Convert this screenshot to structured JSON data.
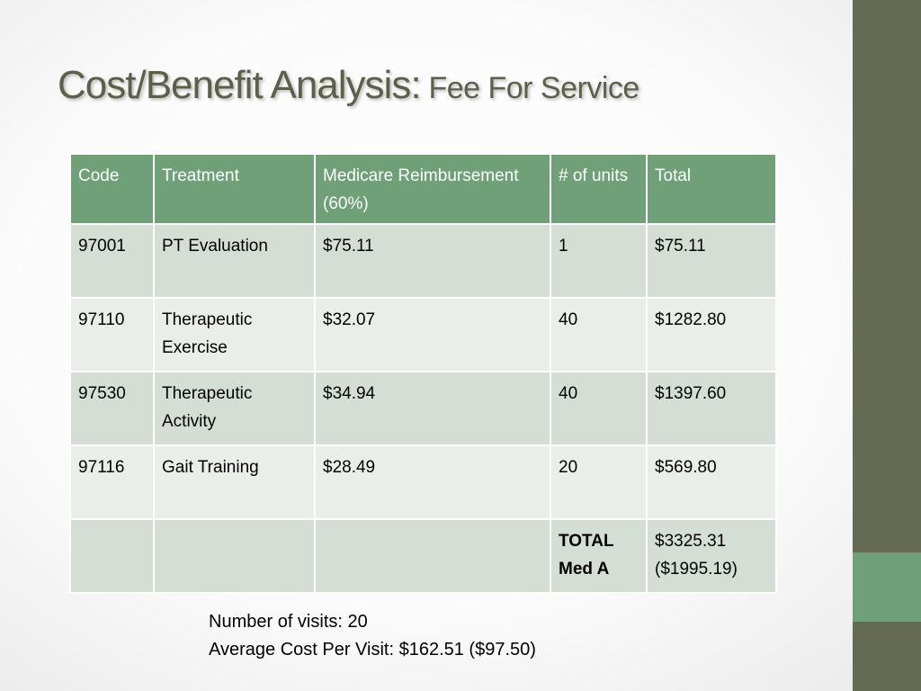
{
  "slide": {
    "title_main": "Cost/Benefit Analysis:",
    "title_sub": "Fee For Service",
    "accent_colors": {
      "sidebar": "#656a53",
      "sidebar_accent": "#6fa077",
      "header_fill": "#6fa077",
      "row_dark": "#d5ded4",
      "row_light": "#eaeee9"
    }
  },
  "table": {
    "headers": {
      "code": "Code",
      "treatment": "Treatment",
      "reimbursement": "Medicare Reimbursement (60%)",
      "units": "# of units",
      "total": "Total"
    },
    "rows": [
      {
        "code": "97001",
        "treatment": "PT Evaluation",
        "reimbursement": "$75.11",
        "units": "1",
        "total": "$75.11"
      },
      {
        "code": "97110",
        "treatment": "Therapeutic Exercise",
        "reimbursement": "$32.07",
        "units": "40",
        "total": "$1282.80"
      },
      {
        "code": "97530",
        "treatment": "Therapeutic Activity",
        "reimbursement": "$34.94",
        "units": "40",
        "total": "$1397.60"
      },
      {
        "code": "97116",
        "treatment": "Gait Training",
        "reimbursement": "$28.49",
        "units": "20",
        "total": "$569.80"
      },
      {
        "code": "",
        "treatment": "",
        "reimbursement": "",
        "units": "TOTAL Med A",
        "total": "$3325.31 ($1995.19)"
      }
    ]
  },
  "summary": {
    "visits": "Number of visits: 20",
    "average": "Average Cost Per Visit: $162.51 ($97.50)"
  }
}
